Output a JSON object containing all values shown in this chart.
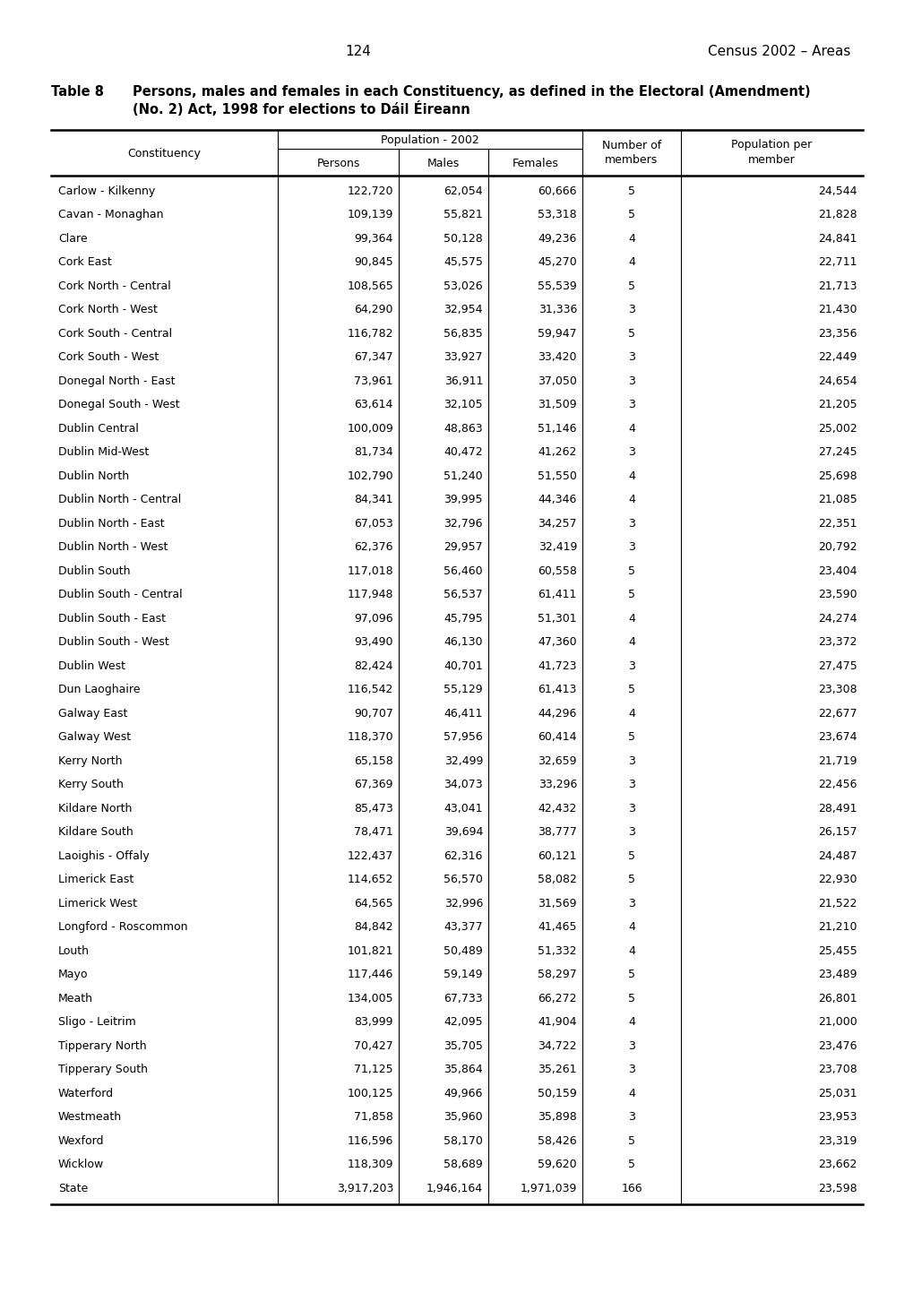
{
  "page_number": "124",
  "page_header_right": "Census 2002 – Areas",
  "table_number": "Table 8",
  "table_title_line1": "Persons, males and females in each Constituency, as defined in the Electoral (Amendment)",
  "table_title_line2": "(No. 2) Act, 1998 for elections to Dáil Éireann",
  "col_header_group": "Population - 2002",
  "col_sub1": "Persons",
  "col_sub2": "Males",
  "col_sub3": "Females",
  "col_sub4": "Number of\nmembers",
  "col_sub5": "Population per\nmember",
  "col_sub0": "Constituency",
  "rows": [
    [
      "Carlow - Kilkenny",
      "122,720",
      "62,054",
      "60,666",
      "5",
      "24,544"
    ],
    [
      "Cavan - Monaghan",
      "109,139",
      "55,821",
      "53,318",
      "5",
      "21,828"
    ],
    [
      "Clare",
      "99,364",
      "50,128",
      "49,236",
      "4",
      "24,841"
    ],
    [
      "Cork East",
      "90,845",
      "45,575",
      "45,270",
      "4",
      "22,711"
    ],
    [
      "Cork North - Central",
      "108,565",
      "53,026",
      "55,539",
      "5",
      "21,713"
    ],
    [
      "Cork North - West",
      "64,290",
      "32,954",
      "31,336",
      "3",
      "21,430"
    ],
    [
      "Cork South - Central",
      "116,782",
      "56,835",
      "59,947",
      "5",
      "23,356"
    ],
    [
      "Cork South - West",
      "67,347",
      "33,927",
      "33,420",
      "3",
      "22,449"
    ],
    [
      "Donegal North - East",
      "73,961",
      "36,911",
      "37,050",
      "3",
      "24,654"
    ],
    [
      "Donegal South - West",
      "63,614",
      "32,105",
      "31,509",
      "3",
      "21,205"
    ],
    [
      "Dublin Central",
      "100,009",
      "48,863",
      "51,146",
      "4",
      "25,002"
    ],
    [
      "Dublin Mid-West",
      "81,734",
      "40,472",
      "41,262",
      "3",
      "27,245"
    ],
    [
      "Dublin North",
      "102,790",
      "51,240",
      "51,550",
      "4",
      "25,698"
    ],
    [
      "Dublin North - Central",
      "84,341",
      "39,995",
      "44,346",
      "4",
      "21,085"
    ],
    [
      "Dublin North - East",
      "67,053",
      "32,796",
      "34,257",
      "3",
      "22,351"
    ],
    [
      "Dublin North - West",
      "62,376",
      "29,957",
      "32,419",
      "3",
      "20,792"
    ],
    [
      "Dublin South",
      "117,018",
      "56,460",
      "60,558",
      "5",
      "23,404"
    ],
    [
      "Dublin South - Central",
      "117,948",
      "56,537",
      "61,411",
      "5",
      "23,590"
    ],
    [
      "Dublin South - East",
      "97,096",
      "45,795",
      "51,301",
      "4",
      "24,274"
    ],
    [
      "Dublin South - West",
      "93,490",
      "46,130",
      "47,360",
      "4",
      "23,372"
    ],
    [
      "Dublin West",
      "82,424",
      "40,701",
      "41,723",
      "3",
      "27,475"
    ],
    [
      "Dun Laoghaire",
      "116,542",
      "55,129",
      "61,413",
      "5",
      "23,308"
    ],
    [
      "Galway East",
      "90,707",
      "46,411",
      "44,296",
      "4",
      "22,677"
    ],
    [
      "Galway West",
      "118,370",
      "57,956",
      "60,414",
      "5",
      "23,674"
    ],
    [
      "Kerry North",
      "65,158",
      "32,499",
      "32,659",
      "3",
      "21,719"
    ],
    [
      "Kerry South",
      "67,369",
      "34,073",
      "33,296",
      "3",
      "22,456"
    ],
    [
      "Kildare North",
      "85,473",
      "43,041",
      "42,432",
      "3",
      "28,491"
    ],
    [
      "Kildare South",
      "78,471",
      "39,694",
      "38,777",
      "3",
      "26,157"
    ],
    [
      "Laoighis - Offaly",
      "122,437",
      "62,316",
      "60,121",
      "5",
      "24,487"
    ],
    [
      "Limerick East",
      "114,652",
      "56,570",
      "58,082",
      "5",
      "22,930"
    ],
    [
      "Limerick West",
      "64,565",
      "32,996",
      "31,569",
      "3",
      "21,522"
    ],
    [
      "Longford - Roscommon",
      "84,842",
      "43,377",
      "41,465",
      "4",
      "21,210"
    ],
    [
      "Louth",
      "101,821",
      "50,489",
      "51,332",
      "4",
      "25,455"
    ],
    [
      "Mayo",
      "117,446",
      "59,149",
      "58,297",
      "5",
      "23,489"
    ],
    [
      "Meath",
      "134,005",
      "67,733",
      "66,272",
      "5",
      "26,801"
    ],
    [
      "Sligo - Leitrim",
      "83,999",
      "42,095",
      "41,904",
      "4",
      "21,000"
    ],
    [
      "Tipperary North",
      "70,427",
      "35,705",
      "34,722",
      "3",
      "23,476"
    ],
    [
      "Tipperary South",
      "71,125",
      "35,864",
      "35,261",
      "3",
      "23,708"
    ],
    [
      "Waterford",
      "100,125",
      "49,966",
      "50,159",
      "4",
      "25,031"
    ],
    [
      "Westmeath",
      "71,858",
      "35,960",
      "35,898",
      "3",
      "23,953"
    ],
    [
      "Wexford",
      "116,596",
      "58,170",
      "58,426",
      "5",
      "23,319"
    ],
    [
      "Wicklow",
      "118,309",
      "58,689",
      "59,620",
      "5",
      "23,662"
    ],
    [
      "State",
      "3,917,203",
      "1,946,164",
      "1,971,039",
      "166",
      "23,598"
    ]
  ],
  "figsize": [
    10.2,
    14.43
  ],
  "dpi": 100
}
